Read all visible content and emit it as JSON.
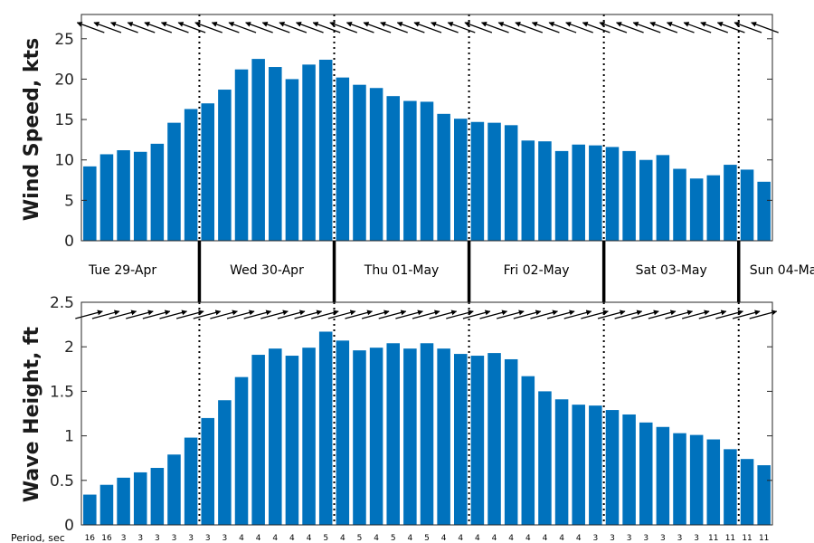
{
  "chart_data": [
    {
      "type": "bar",
      "ylabel": "Wind Speed, kts",
      "ylim": [
        0,
        28
      ],
      "yticks": [
        0,
        5,
        10,
        15,
        20,
        25
      ],
      "bar_color": "#0072BD",
      "values": [
        9.2,
        10.7,
        11.2,
        11.0,
        12.0,
        14.6,
        16.3,
        17.0,
        18.7,
        21.2,
        22.5,
        21.5,
        20.0,
        21.8,
        22.4,
        20.2,
        19.3,
        18.9,
        17.9,
        17.3,
        17.2,
        15.7,
        15.1,
        14.7,
        14.6,
        14.3,
        12.4,
        12.3,
        11.1,
        11.9,
        11.8,
        11.6,
        11.1,
        10.0,
        10.6,
        8.9,
        7.7,
        8.1,
        9.4,
        8.8,
        7.3
      ],
      "direction_arrows": "NW, every 3 hours",
      "grid": false
    },
    {
      "type": "bar",
      "ylabel": "Wave Height, ft",
      "ylim": [
        0,
        2.5
      ],
      "yticks": [
        "0",
        "0.5",
        "1",
        "1.5",
        "2",
        "2.5"
      ],
      "bar_color": "#0072BD",
      "values": [
        0.34,
        0.45,
        0.53,
        0.59,
        0.64,
        0.79,
        0.98,
        1.2,
        1.4,
        1.66,
        1.91,
        1.98,
        1.9,
        1.99,
        2.17,
        2.07,
        1.96,
        1.99,
        2.04,
        1.98,
        2.04,
        1.98,
        1.92,
        1.9,
        1.93,
        1.86,
        1.67,
        1.5,
        1.41,
        1.35,
        1.34,
        1.29,
        1.24,
        1.15,
        1.1,
        1.03,
        1.01,
        0.96,
        0.85,
        0.74,
        0.67
      ],
      "direction_arrows": "ENE, every 3 hours",
      "period_title": "Period, sec",
      "periods": [
        "16",
        "16",
        "3",
        "3",
        "3",
        "3",
        "3",
        "3",
        "3",
        "4",
        "4",
        "4",
        "4",
        "4",
        "5",
        "4",
        "5",
        "4",
        "5",
        "4",
        "5",
        "4",
        "4",
        "4",
        "4",
        "4",
        "4",
        "4",
        "4",
        "4",
        "3",
        "3",
        "3",
        "3",
        "3",
        "3",
        "3",
        "11",
        "11",
        "11",
        "11"
      ],
      "grid": false
    }
  ],
  "days": [
    {
      "label": "Tue 29-Apr",
      "start": 0
    },
    {
      "label": "Wed 30-Apr",
      "start": 7
    },
    {
      "label": "Thu 01-May",
      "start": 15
    },
    {
      "label": "Fri 02-May",
      "start": 23
    },
    {
      "label": "Sat 03-May",
      "start": 31
    },
    {
      "label": "Sun 04-Ma",
      "start": 39
    }
  ],
  "day_boundaries": [
    6.5,
    14.5,
    22.5,
    30.5,
    38.5
  ]
}
